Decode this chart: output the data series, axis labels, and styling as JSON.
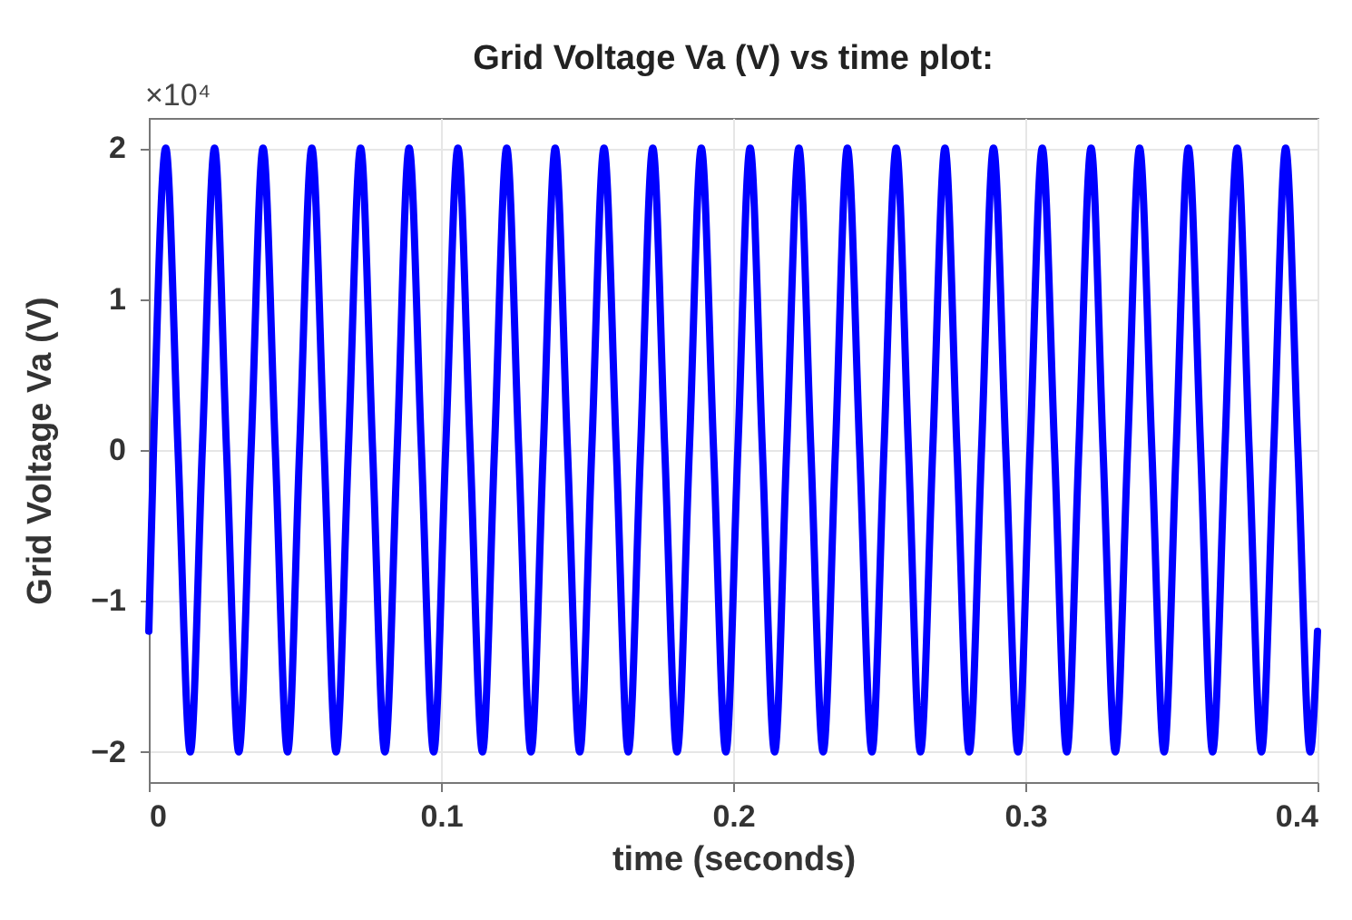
{
  "chart_data": {
    "type": "line",
    "title": "Grid Voltage Va (V) vs time plot:",
    "xlabel": "time (seconds)",
    "ylabel": "Grid Voltage Va (V)",
    "annotations": [
      "×10⁴"
    ],
    "x": [
      0,
      0.0016,
      0.0058,
      0.01,
      0.0142,
      0.0183,
      0.0225,
      0.0266,
      0.0308,
      0.035,
      0.0391,
      0.0433,
      0.0475,
      0.0516,
      0.0558,
      0.06,
      0.0641,
      0.0683,
      0.0725,
      0.0766,
      0.0808,
      0.085,
      0.0891,
      0.0933,
      0.0975,
      0.1016,
      0.1058,
      0.11,
      0.1142,
      0.1183,
      0.1225,
      0.1266,
      0.1308,
      0.135,
      0.1391,
      0.1433,
      0.1475,
      0.1516,
      0.1558,
      0.16,
      0.1641,
      0.1683,
      0.1725,
      0.1766,
      0.1808,
      0.185,
      0.1891,
      0.1933,
      0.1975,
      0.2016,
      0.2058,
      0.21,
      0.2142,
      0.2183,
      0.2225,
      0.2266,
      0.2308,
      0.235,
      0.2391,
      0.2433,
      0.2475,
      0.2516,
      0.2558,
      0.26,
      0.2641,
      0.2683,
      0.2725,
      0.2766,
      0.2808,
      0.285,
      0.2891,
      0.2933,
      0.2975,
      0.3016,
      0.3058,
      0.31,
      0.3142,
      0.3183,
      0.3225,
      0.3266,
      0.3308,
      0.335,
      0.3391,
      0.3433,
      0.3475,
      0.3516,
      0.3558,
      0.36,
      0.3641,
      0.3683,
      0.3725,
      0.3766,
      0.3808,
      0.385,
      0.3891,
      0.3933,
      0.3975,
      0.4
    ],
    "series": [
      {
        "color": "#0000ff",
        "values": [
          -1.2,
          0,
          2,
          0,
          -2,
          0,
          2,
          0,
          -2,
          0,
          2,
          0,
          -2,
          0,
          2,
          0,
          -2,
          0,
          2,
          0,
          -2,
          0,
          2,
          0,
          -2,
          0,
          2,
          0,
          -2,
          0,
          2,
          0,
          -2,
          0,
          2,
          0,
          -2,
          0,
          2,
          0,
          -2,
          0,
          2,
          0,
          -2,
          0,
          2,
          0,
          -2,
          0,
          2,
          0,
          -2,
          0,
          2,
          0,
          -2,
          0,
          2,
          0,
          -2,
          0,
          2,
          0,
          -2,
          0,
          2,
          0,
          -2,
          0,
          2,
          0,
          -2,
          0,
          2,
          0,
          -2,
          0,
          2,
          0,
          -2,
          0,
          2,
          0,
          -2,
          0,
          2,
          0,
          -2,
          0,
          2,
          0,
          -2,
          0,
          2,
          0,
          -2,
          -1.2
        ]
      }
    ],
    "xlim": [
      0,
      0.4
    ],
    "xticks": [
      0,
      0.1,
      0.2,
      0.3,
      0.4
    ],
    "ylim": [
      -2.2,
      2.2
    ],
    "yticks": [
      -2,
      -1,
      0,
      1,
      2
    ],
    "grid": true,
    "legend": false,
    "marker": "none",
    "line_style": "solid"
  }
}
